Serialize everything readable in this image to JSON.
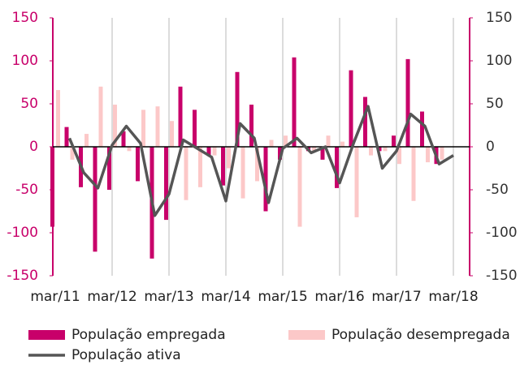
{
  "chart_data": {
    "type": "bar",
    "categories": [
      "mar/11",
      null,
      null,
      null,
      "mar/12",
      null,
      null,
      null,
      "mar/13",
      null,
      null,
      null,
      "mar/14",
      null,
      null,
      null,
      "mar/15",
      null,
      null,
      null,
      "mar/16",
      null,
      null,
      null,
      "mar/17",
      null,
      null,
      null,
      "mar/18"
    ],
    "series": [
      {
        "name": "População empregada",
        "type": "bar",
        "color": "#c8006a",
        "values": [
          -93,
          23,
          -47,
          -122,
          -50,
          18,
          -40,
          -130,
          -85,
          70,
          43,
          -10,
          -45,
          87,
          49,
          -75,
          -15,
          104,
          -5,
          -15,
          -48,
          89,
          58,
          -5,
          13,
          102,
          41,
          -20,
          null
        ]
      },
      {
        "name": "População desempregada",
        "type": "bar",
        "color": "#fcc8c8",
        "values": [
          66,
          -15,
          15,
          70,
          49,
          -5,
          43,
          47,
          30,
          -62,
          -47,
          -10,
          -25,
          -60,
          -40,
          8,
          13,
          -93,
          -5,
          13,
          6,
          -82,
          -10,
          -5,
          -20,
          -63,
          -18,
          -15,
          null
        ]
      },
      {
        "name": "População ativa",
        "type": "line",
        "color": "#555555",
        "values": [
          null,
          10,
          -30,
          -48,
          2,
          24,
          4,
          -80,
          -55,
          8,
          -2,
          -12,
          -63,
          27,
          10,
          -65,
          -2,
          10,
          -7,
          0,
          -42,
          5,
          47,
          -25,
          -5,
          38,
          24,
          -20,
          -10
        ]
      }
    ],
    "ylim": [
      -150,
      150
    ],
    "yticks": [
      -150,
      -100,
      -50,
      0,
      50,
      100,
      150
    ],
    "y2lim": [
      -150,
      150
    ],
    "y2ticks": [
      -150,
      -100,
      -50,
      0,
      50,
      100,
      150
    ],
    "grid": true,
    "legend": "bottom"
  }
}
